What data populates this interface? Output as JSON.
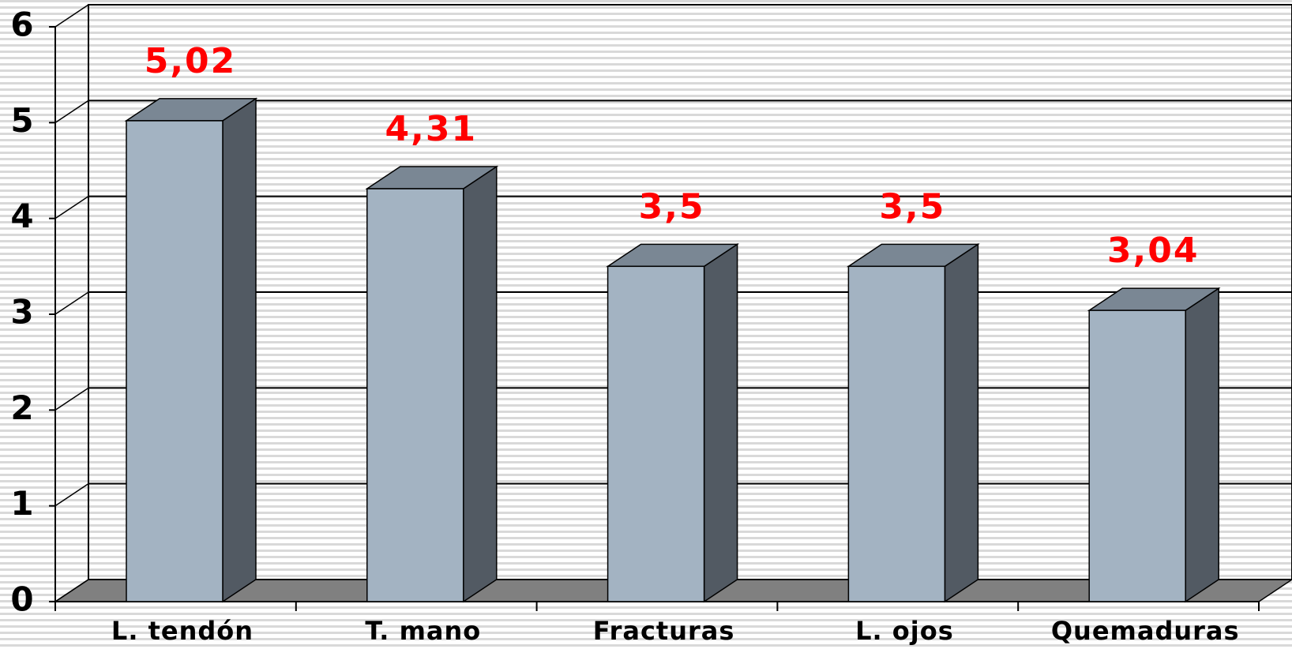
{
  "chart_data": {
    "type": "bar3d",
    "categories": [
      "L. tendón",
      "T. mano",
      "Fracturas",
      "L. ojos",
      "Quemaduras"
    ],
    "values": [
      5.02,
      4.31,
      3.5,
      3.5,
      3.04
    ],
    "value_labels": [
      "5,02",
      "4,31",
      "3,5",
      "3,5",
      "3,04"
    ],
    "color": "#a3b3c2",
    "label_color": "#ff0000",
    "ylim": [
      0,
      6
    ],
    "yticks": [
      0,
      1,
      2,
      3,
      4,
      5,
      6
    ],
    "grid": true
  }
}
